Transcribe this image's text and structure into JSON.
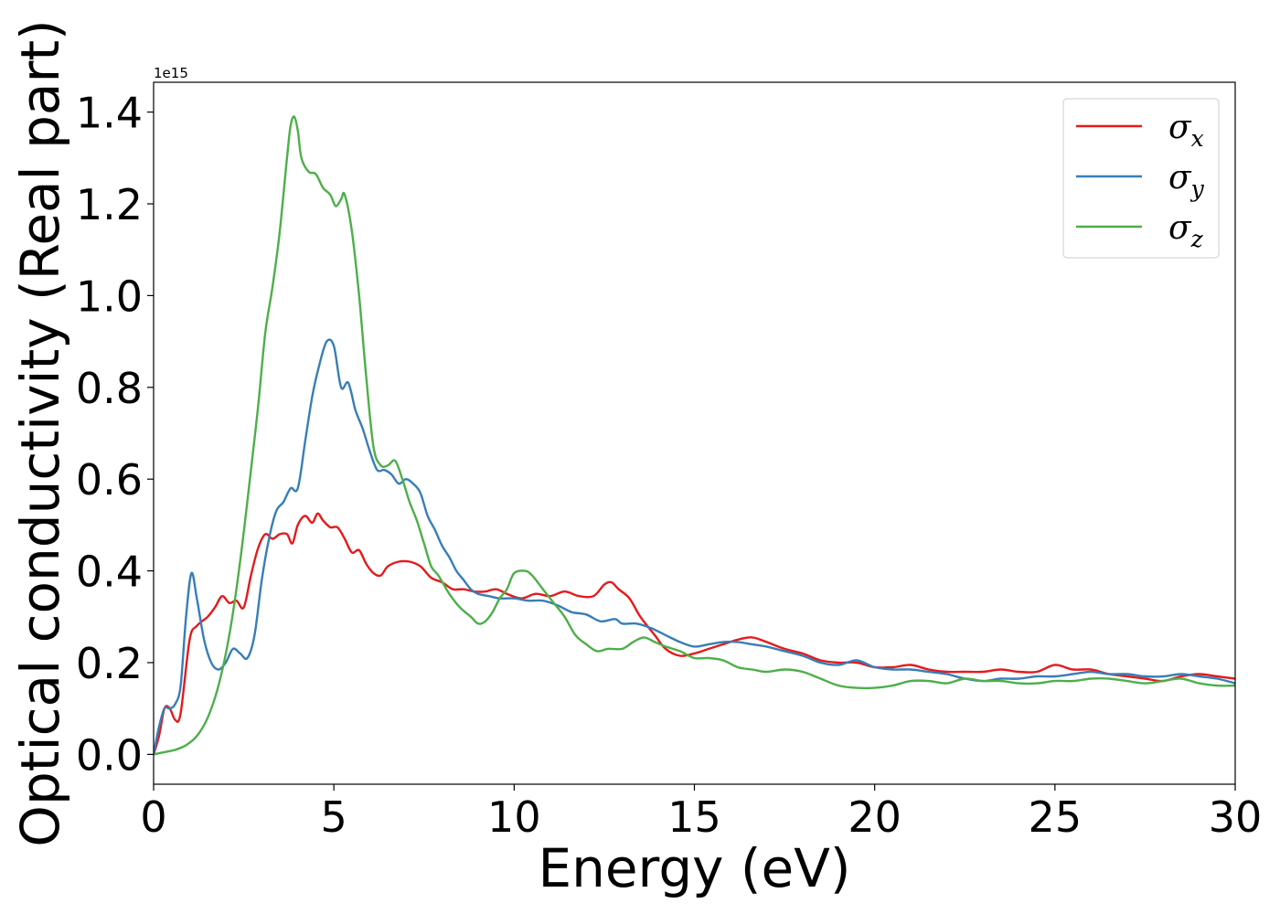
{
  "chart_data": {
    "type": "line",
    "xlabel": "Energy (eV)",
    "ylabel": "Optical conductivity (Real part)",
    "y_offset_label": "1e15",
    "xlim": [
      0,
      30
    ],
    "ylim": [
      -0.065,
      1.465
    ],
    "x_ticks": [
      0,
      5,
      10,
      15,
      20,
      25,
      30
    ],
    "x_tick_labels": [
      "0",
      "5",
      "10",
      "15",
      "20",
      "25",
      "30"
    ],
    "y_ticks": [
      0.0,
      0.2,
      0.4,
      0.6,
      0.8,
      1.0,
      1.2,
      1.4
    ],
    "y_tick_labels": [
      "0.0",
      "0.2",
      "0.4",
      "0.6",
      "0.8",
      "1.0",
      "1.2",
      "1.4"
    ],
    "grid": false,
    "legend_position": "top-right",
    "series": [
      {
        "symbol": "σ",
        "subscript": "x",
        "color": "#e41a1c",
        "points": [
          [
            0,
            0
          ],
          [
            0.15,
            0.04
          ],
          [
            0.3,
            0.1
          ],
          [
            0.45,
            0.1
          ],
          [
            0.6,
            0.075
          ],
          [
            0.75,
            0.09
          ],
          [
            1.0,
            0.25
          ],
          [
            1.2,
            0.28
          ],
          [
            1.5,
            0.3
          ],
          [
            1.7,
            0.32
          ],
          [
            1.9,
            0.345
          ],
          [
            2.1,
            0.33
          ],
          [
            2.3,
            0.335
          ],
          [
            2.5,
            0.32
          ],
          [
            2.7,
            0.39
          ],
          [
            2.9,
            0.45
          ],
          [
            3.1,
            0.48
          ],
          [
            3.3,
            0.47
          ],
          [
            3.5,
            0.48
          ],
          [
            3.7,
            0.48
          ],
          [
            3.85,
            0.46
          ],
          [
            4.0,
            0.5
          ],
          [
            4.2,
            0.52
          ],
          [
            4.4,
            0.505
          ],
          [
            4.55,
            0.525
          ],
          [
            4.7,
            0.51
          ],
          [
            4.9,
            0.495
          ],
          [
            5.1,
            0.495
          ],
          [
            5.3,
            0.47
          ],
          [
            5.5,
            0.44
          ],
          [
            5.7,
            0.445
          ],
          [
            5.9,
            0.415
          ],
          [
            6.1,
            0.395
          ],
          [
            6.3,
            0.39
          ],
          [
            6.5,
            0.41
          ],
          [
            6.8,
            0.42
          ],
          [
            7.1,
            0.42
          ],
          [
            7.4,
            0.41
          ],
          [
            7.7,
            0.385
          ],
          [
            8.0,
            0.375
          ],
          [
            8.3,
            0.36
          ],
          [
            8.6,
            0.36
          ],
          [
            8.9,
            0.355
          ],
          [
            9.2,
            0.355
          ],
          [
            9.5,
            0.36
          ],
          [
            9.8,
            0.35
          ],
          [
            10.2,
            0.34
          ],
          [
            10.6,
            0.35
          ],
          [
            11.0,
            0.345
          ],
          [
            11.4,
            0.355
          ],
          [
            11.8,
            0.345
          ],
          [
            12.2,
            0.345
          ],
          [
            12.5,
            0.37
          ],
          [
            12.7,
            0.375
          ],
          [
            12.9,
            0.36
          ],
          [
            13.2,
            0.34
          ],
          [
            13.5,
            0.3
          ],
          [
            13.9,
            0.26
          ],
          [
            14.2,
            0.23
          ],
          [
            14.6,
            0.215
          ],
          [
            15.0,
            0.22
          ],
          [
            15.4,
            0.23
          ],
          [
            15.8,
            0.24
          ],
          [
            16.2,
            0.25
          ],
          [
            16.6,
            0.255
          ],
          [
            17.0,
            0.245
          ],
          [
            17.5,
            0.23
          ],
          [
            18.0,
            0.22
          ],
          [
            18.5,
            0.205
          ],
          [
            19.0,
            0.2
          ],
          [
            19.5,
            0.2
          ],
          [
            20.0,
            0.19
          ],
          [
            20.5,
            0.19
          ],
          [
            21.0,
            0.195
          ],
          [
            21.5,
            0.185
          ],
          [
            22.0,
            0.18
          ],
          [
            22.5,
            0.18
          ],
          [
            23.0,
            0.18
          ],
          [
            23.5,
            0.185
          ],
          [
            24.0,
            0.18
          ],
          [
            24.5,
            0.18
          ],
          [
            25.0,
            0.195
          ],
          [
            25.5,
            0.185
          ],
          [
            26.0,
            0.185
          ],
          [
            26.5,
            0.175
          ],
          [
            27.0,
            0.17
          ],
          [
            27.5,
            0.165
          ],
          [
            28.0,
            0.16
          ],
          [
            28.5,
            0.17
          ],
          [
            29.0,
            0.175
          ],
          [
            29.5,
            0.17
          ],
          [
            30.0,
            0.165
          ]
        ]
      },
      {
        "symbol": "σ",
        "subscript": "y",
        "color": "#377eb8",
        "points": [
          [
            0,
            0
          ],
          [
            0.15,
            0.06
          ],
          [
            0.3,
            0.1
          ],
          [
            0.45,
            0.1
          ],
          [
            0.6,
            0.11
          ],
          [
            0.75,
            0.15
          ],
          [
            0.9,
            0.3
          ],
          [
            1.05,
            0.395
          ],
          [
            1.2,
            0.34
          ],
          [
            1.4,
            0.25
          ],
          [
            1.6,
            0.2
          ],
          [
            1.8,
            0.185
          ],
          [
            2.0,
            0.2
          ],
          [
            2.2,
            0.23
          ],
          [
            2.4,
            0.22
          ],
          [
            2.6,
            0.21
          ],
          [
            2.8,
            0.26
          ],
          [
            3.0,
            0.38
          ],
          [
            3.2,
            0.47
          ],
          [
            3.4,
            0.53
          ],
          [
            3.6,
            0.55
          ],
          [
            3.8,
            0.58
          ],
          [
            4.0,
            0.58
          ],
          [
            4.2,
            0.68
          ],
          [
            4.4,
            0.78
          ],
          [
            4.6,
            0.85
          ],
          [
            4.8,
            0.9
          ],
          [
            5.0,
            0.89
          ],
          [
            5.2,
            0.8
          ],
          [
            5.4,
            0.81
          ],
          [
            5.6,
            0.75
          ],
          [
            5.8,
            0.71
          ],
          [
            6.0,
            0.66
          ],
          [
            6.2,
            0.62
          ],
          [
            6.4,
            0.62
          ],
          [
            6.6,
            0.61
          ],
          [
            6.8,
            0.59
          ],
          [
            7.0,
            0.6
          ],
          [
            7.2,
            0.59
          ],
          [
            7.4,
            0.57
          ],
          [
            7.6,
            0.52
          ],
          [
            7.8,
            0.49
          ],
          [
            8.0,
            0.455
          ],
          [
            8.2,
            0.43
          ],
          [
            8.4,
            0.4
          ],
          [
            8.6,
            0.38
          ],
          [
            8.8,
            0.36
          ],
          [
            9.0,
            0.35
          ],
          [
            9.3,
            0.345
          ],
          [
            9.6,
            0.34
          ],
          [
            10.0,
            0.34
          ],
          [
            10.4,
            0.335
          ],
          [
            10.8,
            0.335
          ],
          [
            11.2,
            0.325
          ],
          [
            11.6,
            0.31
          ],
          [
            12.0,
            0.305
          ],
          [
            12.4,
            0.29
          ],
          [
            12.8,
            0.295
          ],
          [
            13.0,
            0.285
          ],
          [
            13.4,
            0.285
          ],
          [
            13.8,
            0.275
          ],
          [
            14.2,
            0.26
          ],
          [
            14.6,
            0.245
          ],
          [
            15.0,
            0.235
          ],
          [
            15.4,
            0.24
          ],
          [
            15.8,
            0.245
          ],
          [
            16.2,
            0.245
          ],
          [
            16.6,
            0.24
          ],
          [
            17.0,
            0.235
          ],
          [
            17.5,
            0.225
          ],
          [
            18.0,
            0.215
          ],
          [
            18.5,
            0.2
          ],
          [
            19.0,
            0.195
          ],
          [
            19.5,
            0.205
          ],
          [
            20.0,
            0.19
          ],
          [
            20.5,
            0.185
          ],
          [
            21.0,
            0.185
          ],
          [
            21.5,
            0.18
          ],
          [
            22.0,
            0.175
          ],
          [
            22.5,
            0.165
          ],
          [
            23.0,
            0.16
          ],
          [
            23.5,
            0.165
          ],
          [
            24.0,
            0.165
          ],
          [
            24.5,
            0.17
          ],
          [
            25.0,
            0.17
          ],
          [
            25.5,
            0.175
          ],
          [
            26.0,
            0.18
          ],
          [
            26.5,
            0.175
          ],
          [
            27.0,
            0.175
          ],
          [
            27.5,
            0.17
          ],
          [
            28.0,
            0.17
          ],
          [
            28.5,
            0.175
          ],
          [
            29.0,
            0.17
          ],
          [
            29.5,
            0.165
          ],
          [
            30.0,
            0.155
          ]
        ]
      },
      {
        "symbol": "σ",
        "subscript": "z",
        "color": "#4daf4a",
        "points": [
          [
            0,
            0
          ],
          [
            0.3,
            0.005
          ],
          [
            0.6,
            0.01
          ],
          [
            0.9,
            0.02
          ],
          [
            1.2,
            0.04
          ],
          [
            1.5,
            0.08
          ],
          [
            1.8,
            0.15
          ],
          [
            2.1,
            0.26
          ],
          [
            2.4,
            0.42
          ],
          [
            2.7,
            0.62
          ],
          [
            2.9,
            0.76
          ],
          [
            3.1,
            0.92
          ],
          [
            3.3,
            1.02
          ],
          [
            3.5,
            1.14
          ],
          [
            3.7,
            1.3
          ],
          [
            3.8,
            1.37
          ],
          [
            3.9,
            1.39
          ],
          [
            4.0,
            1.36
          ],
          [
            4.1,
            1.3
          ],
          [
            4.3,
            1.27
          ],
          [
            4.5,
            1.265
          ],
          [
            4.7,
            1.235
          ],
          [
            4.9,
            1.22
          ],
          [
            5.05,
            1.195
          ],
          [
            5.2,
            1.21
          ],
          [
            5.3,
            1.22
          ],
          [
            5.5,
            1.14
          ],
          [
            5.7,
            1.0
          ],
          [
            5.9,
            0.82
          ],
          [
            6.1,
            0.67
          ],
          [
            6.3,
            0.63
          ],
          [
            6.5,
            0.63
          ],
          [
            6.7,
            0.64
          ],
          [
            6.9,
            0.6
          ],
          [
            7.1,
            0.55
          ],
          [
            7.3,
            0.51
          ],
          [
            7.5,
            0.46
          ],
          [
            7.7,
            0.41
          ],
          [
            7.9,
            0.39
          ],
          [
            8.2,
            0.35
          ],
          [
            8.5,
            0.32
          ],
          [
            8.8,
            0.3
          ],
          [
            9.0,
            0.285
          ],
          [
            9.2,
            0.29
          ],
          [
            9.4,
            0.31
          ],
          [
            9.6,
            0.34
          ],
          [
            9.8,
            0.36
          ],
          [
            10.0,
            0.395
          ],
          [
            10.3,
            0.4
          ],
          [
            10.5,
            0.39
          ],
          [
            10.8,
            0.36
          ],
          [
            11.1,
            0.33
          ],
          [
            11.4,
            0.3
          ],
          [
            11.7,
            0.26
          ],
          [
            12.0,
            0.24
          ],
          [
            12.3,
            0.225
          ],
          [
            12.6,
            0.23
          ],
          [
            13.0,
            0.23
          ],
          [
            13.3,
            0.245
          ],
          [
            13.6,
            0.255
          ],
          [
            13.9,
            0.245
          ],
          [
            14.2,
            0.235
          ],
          [
            14.6,
            0.225
          ],
          [
            15.0,
            0.21
          ],
          [
            15.4,
            0.21
          ],
          [
            15.8,
            0.205
          ],
          [
            16.2,
            0.19
          ],
          [
            16.6,
            0.185
          ],
          [
            17.0,
            0.18
          ],
          [
            17.5,
            0.185
          ],
          [
            18.0,
            0.18
          ],
          [
            18.5,
            0.165
          ],
          [
            19.0,
            0.15
          ],
          [
            19.5,
            0.145
          ],
          [
            20.0,
            0.145
          ],
          [
            20.5,
            0.15
          ],
          [
            21.0,
            0.16
          ],
          [
            21.5,
            0.16
          ],
          [
            22.0,
            0.155
          ],
          [
            22.5,
            0.165
          ],
          [
            23.0,
            0.16
          ],
          [
            23.5,
            0.16
          ],
          [
            24.0,
            0.155
          ],
          [
            24.5,
            0.155
          ],
          [
            25.0,
            0.16
          ],
          [
            25.5,
            0.16
          ],
          [
            26.0,
            0.165
          ],
          [
            26.5,
            0.165
          ],
          [
            27.0,
            0.16
          ],
          [
            27.5,
            0.155
          ],
          [
            28.0,
            0.16
          ],
          [
            28.5,
            0.165
          ],
          [
            29.0,
            0.155
          ],
          [
            29.5,
            0.15
          ],
          [
            30.0,
            0.15
          ]
        ]
      }
    ]
  }
}
